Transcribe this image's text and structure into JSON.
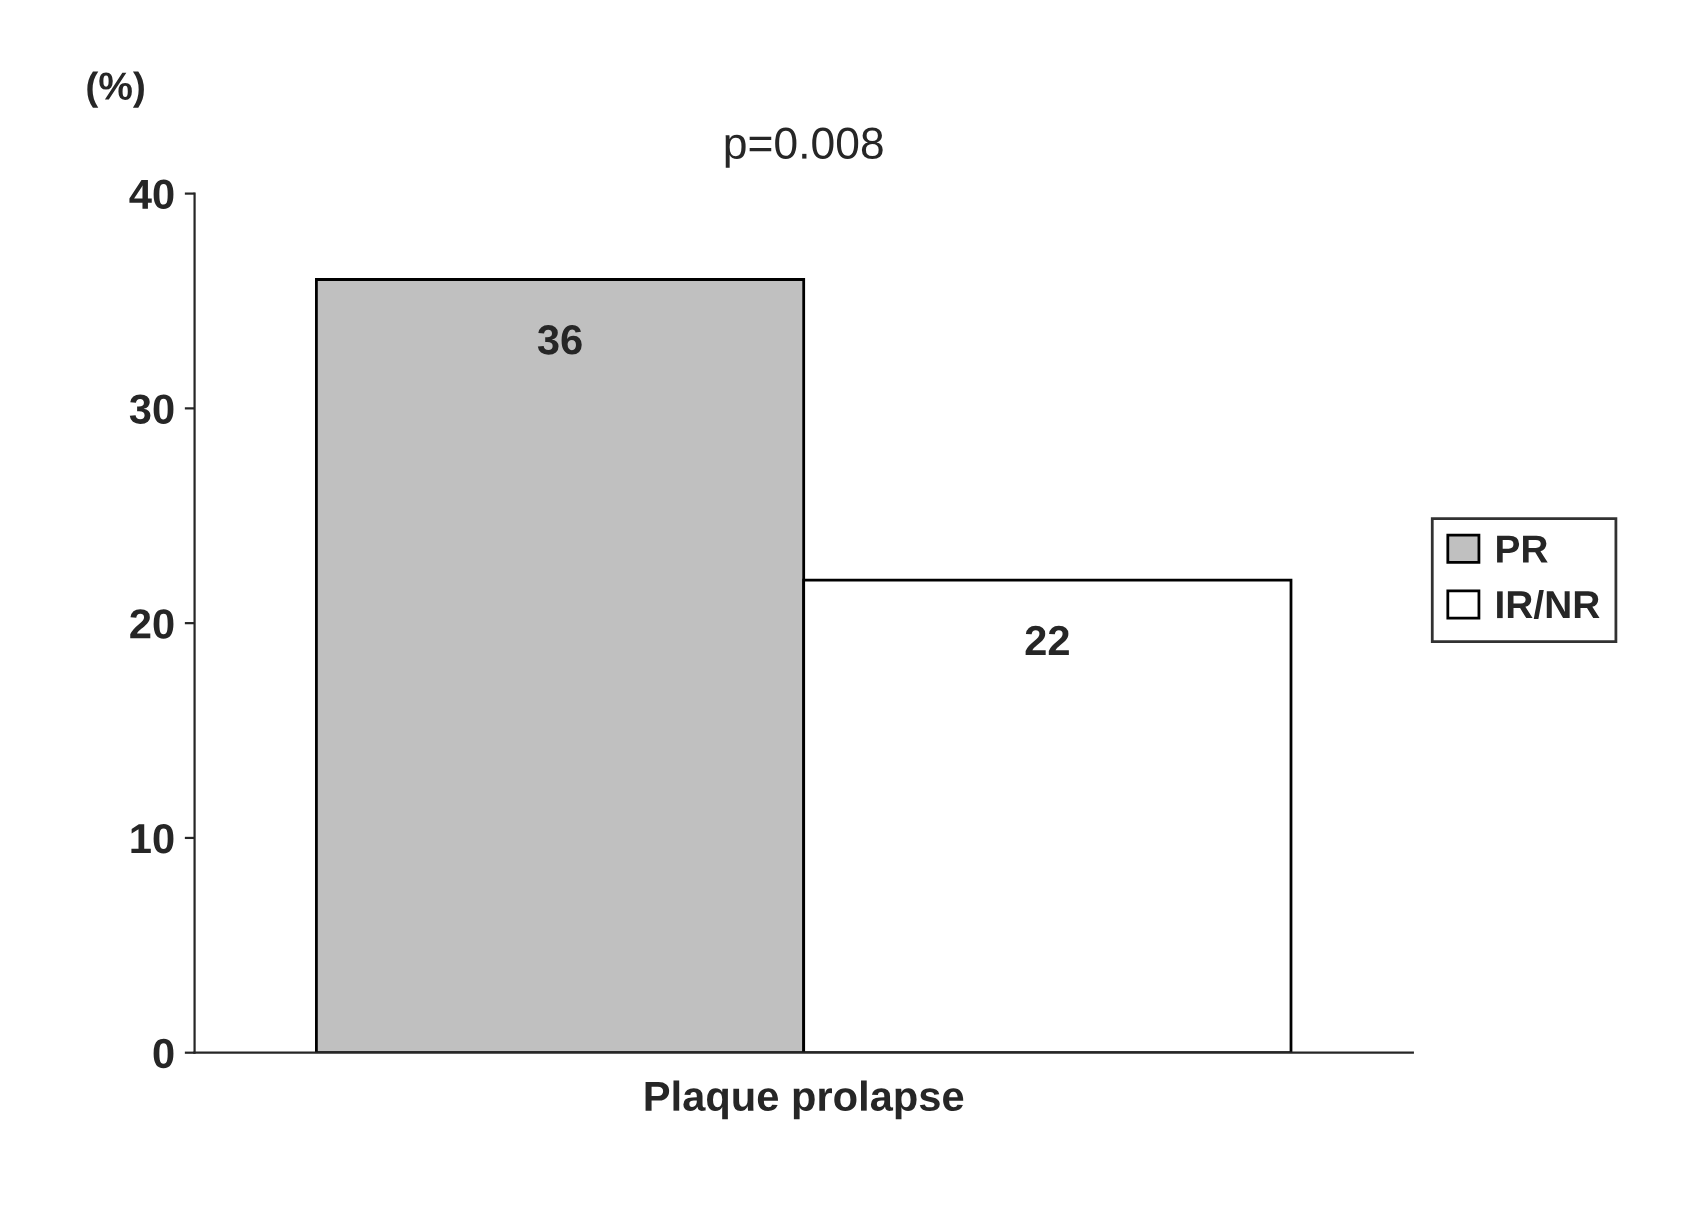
{
  "chart_data": {
    "type": "bar",
    "ylabel": "(%)",
    "categories": [
      "Plaque prolapse"
    ],
    "series": [
      {
        "name": "PR",
        "color": "#c0c0c0",
        "values": [
          36
        ]
      },
      {
        "name": "IR/NR",
        "color": "#ffffff",
        "values": [
          22
        ]
      }
    ],
    "ylim": [
      0,
      40
    ],
    "yticks": [
      0,
      10,
      20,
      30,
      40
    ],
    "data_labels": true,
    "grid": false,
    "legend": "right",
    "annotations": [
      "p=0.008"
    ]
  }
}
